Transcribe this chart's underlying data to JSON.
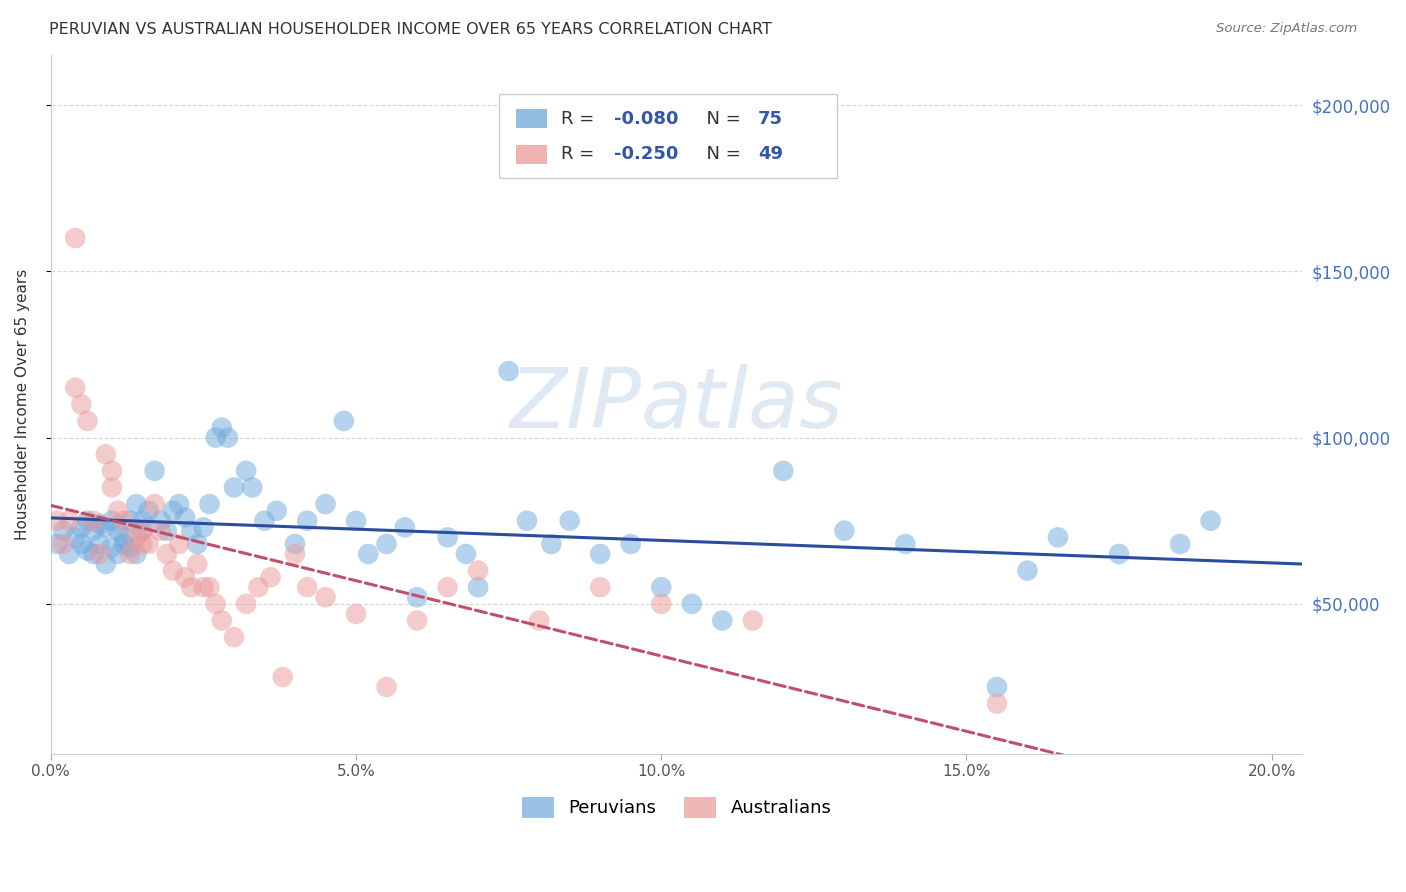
{
  "title": "PERUVIAN VS AUSTRALIAN HOUSEHOLDER INCOME OVER 65 YEARS CORRELATION CHART",
  "source": "Source: ZipAtlas.com",
  "ylabel": "Householder Income Over 65 years",
  "xlabel_ticks": [
    "0.0%",
    "5.0%",
    "10.0%",
    "15.0%",
    "20.0%"
  ],
  "xlabel_vals": [
    0.0,
    0.05,
    0.1,
    0.15,
    0.2
  ],
  "ylabel_ticks": [
    "$50,000",
    "$100,000",
    "$150,000",
    "$200,000"
  ],
  "ylabel_vals": [
    50000,
    100000,
    150000,
    200000
  ],
  "xlim": [
    0.0,
    0.205
  ],
  "ylim": [
    5000,
    215000
  ],
  "blue_color": "#6fa8dc",
  "pink_color": "#ea9999",
  "blue_line_color": "#2a4d9e",
  "pink_line_color": "#c0506a",
  "r_blue": -0.08,
  "n_blue": 75,
  "r_pink": -0.25,
  "n_pink": 49,
  "legend_label_blue": "Peruvians",
  "legend_label_pink": "Australians",
  "watermark": "ZIPatlas",
  "blue_scatter_x": [
    0.001,
    0.002,
    0.003,
    0.004,
    0.005,
    0.005,
    0.006,
    0.006,
    0.007,
    0.007,
    0.008,
    0.008,
    0.009,
    0.009,
    0.01,
    0.01,
    0.011,
    0.011,
    0.012,
    0.012,
    0.013,
    0.013,
    0.014,
    0.014,
    0.015,
    0.015,
    0.016,
    0.017,
    0.018,
    0.019,
    0.02,
    0.021,
    0.022,
    0.023,
    0.024,
    0.025,
    0.026,
    0.027,
    0.028,
    0.029,
    0.03,
    0.032,
    0.033,
    0.035,
    0.037,
    0.04,
    0.042,
    0.045,
    0.048,
    0.05,
    0.052,
    0.055,
    0.058,
    0.06,
    0.065,
    0.068,
    0.07,
    0.075,
    0.078,
    0.082,
    0.085,
    0.09,
    0.095,
    0.1,
    0.105,
    0.11,
    0.12,
    0.13,
    0.14,
    0.155,
    0.16,
    0.165,
    0.175,
    0.185,
    0.19
  ],
  "blue_scatter_y": [
    68000,
    72000,
    65000,
    70000,
    68000,
    73000,
    75000,
    66000,
    72000,
    65000,
    68000,
    74000,
    73000,
    62000,
    75000,
    67000,
    65000,
    72000,
    70000,
    68000,
    75000,
    67000,
    65000,
    80000,
    75000,
    72000,
    78000,
    90000,
    75000,
    72000,
    78000,
    80000,
    76000,
    72000,
    68000,
    73000,
    80000,
    100000,
    103000,
    100000,
    85000,
    90000,
    85000,
    75000,
    78000,
    68000,
    75000,
    80000,
    105000,
    75000,
    65000,
    68000,
    73000,
    52000,
    70000,
    65000,
    55000,
    120000,
    75000,
    68000,
    75000,
    65000,
    68000,
    55000,
    50000,
    45000,
    90000,
    72000,
    68000,
    25000,
    60000,
    70000,
    65000,
    68000,
    75000
  ],
  "pink_scatter_x": [
    0.001,
    0.002,
    0.003,
    0.004,
    0.004,
    0.005,
    0.006,
    0.007,
    0.008,
    0.009,
    0.01,
    0.01,
    0.011,
    0.012,
    0.013,
    0.014,
    0.015,
    0.015,
    0.016,
    0.017,
    0.018,
    0.019,
    0.02,
    0.021,
    0.022,
    0.023,
    0.024,
    0.025,
    0.026,
    0.027,
    0.028,
    0.03,
    0.032,
    0.034,
    0.036,
    0.038,
    0.04,
    0.042,
    0.045,
    0.05,
    0.055,
    0.06,
    0.065,
    0.07,
    0.08,
    0.09,
    0.1,
    0.115,
    0.155
  ],
  "pink_scatter_y": [
    75000,
    68000,
    75000,
    160000,
    115000,
    110000,
    105000,
    75000,
    65000,
    95000,
    90000,
    85000,
    78000,
    75000,
    65000,
    70000,
    72000,
    68000,
    68000,
    80000,
    72000,
    65000,
    60000,
    68000,
    58000,
    55000,
    62000,
    55000,
    55000,
    50000,
    45000,
    40000,
    50000,
    55000,
    58000,
    28000,
    65000,
    55000,
    52000,
    47000,
    25000,
    45000,
    55000,
    60000,
    45000,
    55000,
    50000,
    45000,
    20000
  ]
}
